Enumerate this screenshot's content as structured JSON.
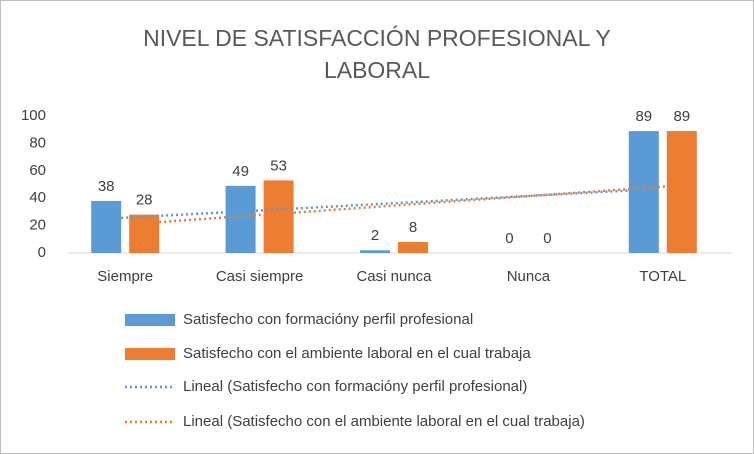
{
  "chart_data": {
    "type": "bar",
    "title": "NIVEL DE SATISFACCIÓN PROFESIONAL Y LABORAL",
    "categories": [
      "Siempre",
      "Casi siempre",
      "Casi nunca",
      "Nunca",
      "TOTAL"
    ],
    "series": [
      {
        "name": "Satisfecho con formacióny perfil profesional",
        "color": "#5b9bd5",
        "values": [
          38,
          49,
          2,
          0,
          89
        ]
      },
      {
        "name": "Satisfecho con el ambiente laboral en el cual trabaja",
        "color": "#ed7d31",
        "values": [
          28,
          53,
          8,
          0,
          89
        ]
      }
    ],
    "trendlines": [
      {
        "name": "Lineal (Satisfecho con formacióny perfil profesional)",
        "color": "#5b9bd5",
        "values": [
          25,
          46.2
        ]
      },
      {
        "name": "Lineal (Satisfecho con el ambiente laboral en el cual trabaja)",
        "color": "#ed7d31",
        "values": [
          21.8,
          49.4
        ]
      }
    ],
    "ylim": [
      0,
      100
    ],
    "yticks": [
      0,
      20,
      40,
      60,
      80,
      100
    ],
    "grid": false
  }
}
